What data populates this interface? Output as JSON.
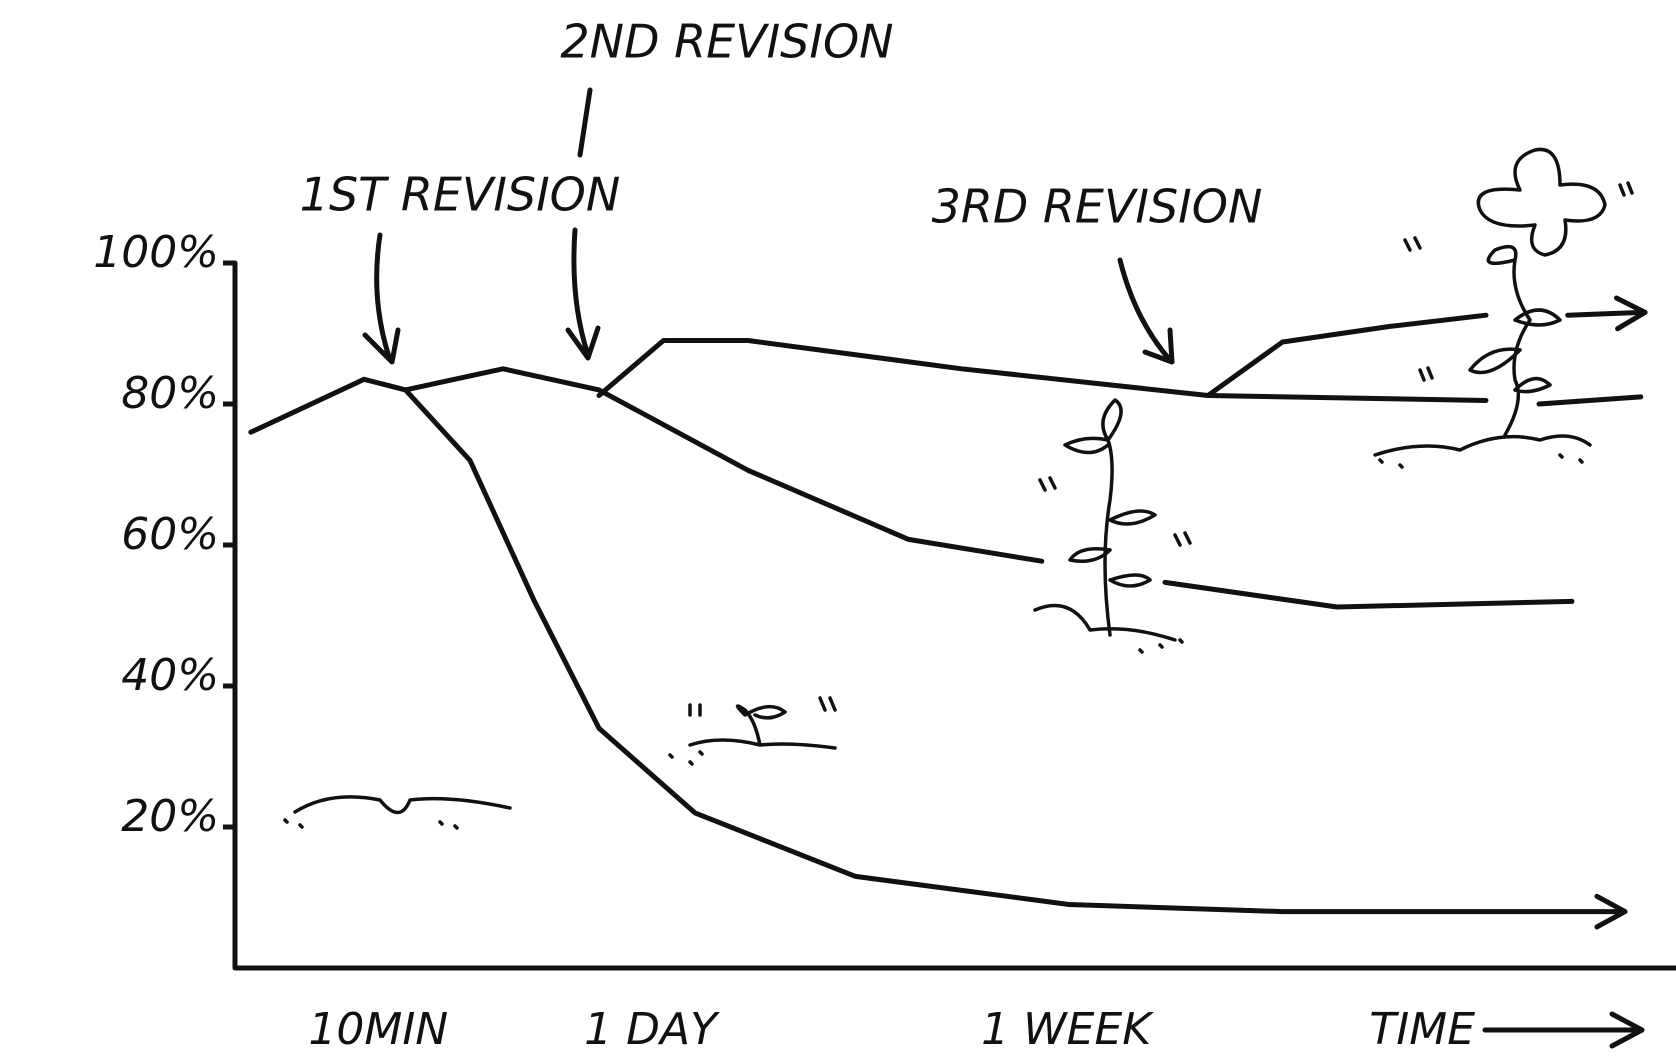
{
  "chart_data": {
    "type": "line",
    "annotations": [
      "1ST REVISION",
      "2ND REVISION",
      "3RD REVISION"
    ],
    "x_label": "TIME",
    "xlim": [
      0,
      100
    ],
    "ylim": [
      0,
      100
    ],
    "xticks": [
      {
        "value": 10,
        "label": "10MIN"
      },
      {
        "value": 29,
        "label": "1 DAY"
      },
      {
        "value": 58,
        "label": "1 WEEK"
      }
    ],
    "yticks": [
      {
        "value": 20,
        "label": "20%"
      },
      {
        "value": 40,
        "label": "40%"
      },
      {
        "value": 60,
        "label": "60%"
      },
      {
        "value": 80,
        "label": "80%"
      },
      {
        "value": 100,
        "label": "100%"
      }
    ],
    "grid": false,
    "series": [
      {
        "color": "#111111",
        "arrow_end": true,
        "x": [
          1.1,
          9,
          11.9,
          16.4,
          20.9,
          25.4,
          32.1,
          43.3,
          58.2,
          73.1,
          97
        ],
        "values": [
          76,
          83.5,
          82,
          72,
          52,
          34,
          22,
          13,
          9,
          8,
          8
        ]
      },
      {
        "color": "#111111",
        "arrow_end": false,
        "x": [
          11.9,
          18.7,
          25.4,
          35.8,
          47,
          56.3,
          60,
          64.9,
          76.9,
          93.3
        ],
        "values": [
          82,
          85,
          82,
          70.6,
          60.8,
          57.7,
          null,
          54.7,
          51.2,
          52
        ]
      },
      {
        "color": "#111111",
        "arrow_end": false,
        "x": [
          25.4,
          29.9,
          35.8,
          50.7,
          67.9,
          87.3,
          89,
          91,
          98.1
        ],
        "values": [
          81.2,
          89,
          89,
          85,
          81.2,
          80.5,
          null,
          80,
          81
        ]
      },
      {
        "color": "#111111",
        "arrow_end": true,
        "x": [
          67.9,
          73.1,
          80.6,
          87.3,
          89,
          93,
          98.4
        ],
        "values": [
          81.2,
          88.8,
          91,
          92.6,
          null,
          92.6,
          93
        ]
      }
    ]
  }
}
